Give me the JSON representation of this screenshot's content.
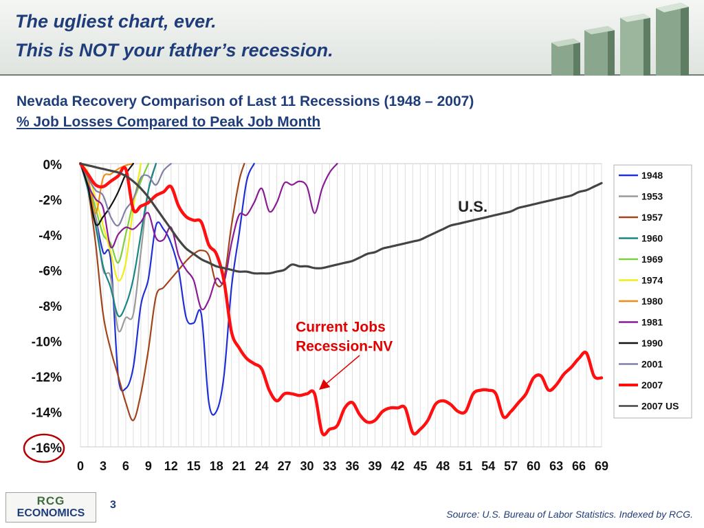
{
  "slide": {
    "title_line1": "The ugliest chart, ever.",
    "title_line2": "This is NOT your father’s recession.",
    "subtitle_line1": "Nevada Recovery Comparison of Last 11 Recessions (1948 – 2007)",
    "subtitle_line2": "% Job Losses Compared to Peak Job Month",
    "page_number": "3",
    "logo_text_top": "RCG",
    "logo_text_bottom": "ECONOMICS",
    "source": "Source: U.S. Bureau of Labor Statistics. Indexed by RCG."
  },
  "chart_data": {
    "type": "line",
    "title": "",
    "xlabel": "",
    "ylabel": "",
    "xlim": [
      0,
      69
    ],
    "ylim": [
      -16,
      0
    ],
    "x_ticks": [
      0,
      3,
      6,
      9,
      12,
      15,
      18,
      21,
      24,
      27,
      30,
      33,
      36,
      39,
      42,
      45,
      48,
      51,
      54,
      57,
      60,
      63,
      66,
      69
    ],
    "x_tick_labels": [
      "0",
      "3",
      "6",
      "9",
      "12",
      "15",
      "18",
      "21",
      "24",
      "27",
      "30",
      "33",
      "36",
      "39",
      "42",
      "45",
      "48",
      "51",
      "54",
      "57",
      "60",
      "63",
      "66",
      "69"
    ],
    "y_ticks": [
      0,
      -2,
      -4,
      -6,
      -8,
      -10,
      -12,
      -14,
      -16
    ],
    "y_tick_labels": [
      "0%",
      "-2%",
      "-4%",
      "-6%",
      "-8%",
      "-10%",
      "-12%",
      "-14%",
      "-16%"
    ],
    "grid": "vertical gridlines at every month",
    "legend_position": "right",
    "annotations": [
      {
        "text": "U.S.",
        "at_x": 50,
        "at_y": -2.4,
        "color": "#222222"
      },
      {
        "text_line1": "Current Jobs",
        "text_line2": "Recession-NV",
        "at_x": 28.5,
        "at_y": -9.5,
        "color": "#e00000",
        "arrow_to_x": 31.8,
        "arrow_to_y": -12.7
      },
      {
        "text": "",
        "circled_tick": "-16%",
        "color": "#b30000"
      }
    ],
    "series": [
      {
        "name": "1948",
        "color": "#1f2fd6",
        "width": 2.2,
        "x": [
          0,
          1,
          2,
          3,
          4,
          5,
          6,
          7,
          8,
          9,
          10,
          11,
          12,
          13,
          14,
          15,
          16,
          17,
          18,
          19,
          20,
          21,
          22,
          23
        ],
        "y": [
          0,
          -1.2,
          -3,
          -5,
          -5.4,
          -12,
          -12.7,
          -11.5,
          -8,
          -6.5,
          -3.5,
          -3.7,
          -4.5,
          -6,
          -8.7,
          -9,
          -8.5,
          -13.5,
          -14,
          -12,
          -7,
          -4,
          -1,
          0
        ]
      },
      {
        "name": "1953",
        "color": "#9a9a9a",
        "width": 2.2,
        "x": [
          0,
          1,
          2,
          3,
          4,
          5,
          6,
          7,
          8,
          9,
          10
        ],
        "y": [
          0,
          -1.2,
          -3,
          -6,
          -6.4,
          -9.4,
          -8.7,
          -8.5,
          -5,
          -1.5,
          0
        ]
      },
      {
        "name": "1957",
        "color": "#a0441a",
        "width": 2.2,
        "x": [
          0,
          1,
          2,
          3,
          4,
          5,
          6,
          7,
          8,
          9,
          10,
          11,
          12,
          13,
          14,
          15,
          16,
          17,
          18,
          19,
          20,
          21,
          21.7
        ],
        "y": [
          0,
          -1.5,
          -4.5,
          -8.5,
          -10.5,
          -12,
          -13.5,
          -14.5,
          -13,
          -10.5,
          -7.5,
          -7,
          -6.5,
          -6,
          -5.5,
          -5.1,
          -4.9,
          -5.2,
          -6.8,
          -6.5,
          -3.5,
          -1,
          0
        ]
      },
      {
        "name": "1960",
        "color": "#1a8585",
        "width": 2.2,
        "x": [
          0,
          1,
          2,
          3,
          4,
          5,
          6,
          7,
          8,
          9,
          10
        ],
        "y": [
          0,
          -1.5,
          -3.5,
          -5.8,
          -7,
          -8.6,
          -8,
          -6.5,
          -4,
          -1.5,
          0
        ]
      },
      {
        "name": "1969",
        "color": "#7ecf3c",
        "width": 2.2,
        "x": [
          0,
          1,
          2,
          3,
          4,
          5,
          6,
          7,
          8,
          9
        ],
        "y": [
          0,
          -1,
          -2.5,
          -4,
          -4.5,
          -5.6,
          -4,
          -2.2,
          -1,
          0
        ]
      },
      {
        "name": "1974",
        "color": "#f0ee10",
        "width": 2.2,
        "x": [
          0,
          1,
          2,
          3,
          4,
          5,
          6,
          7,
          8
        ],
        "y": [
          0,
          -0.5,
          -2,
          -3.5,
          -5,
          -6.6,
          -5.6,
          -2.5,
          0
        ]
      },
      {
        "name": "1980",
        "color": "#f08c1a",
        "width": 2.2,
        "x": [
          0,
          1,
          2,
          3,
          4,
          5,
          6,
          7
        ],
        "y": [
          0,
          -0.8,
          -2.8,
          -0.8,
          -0.6,
          -0.3,
          -0.1,
          0
        ]
      },
      {
        "name": "1981",
        "color": "#8a1a96",
        "width": 2.2,
        "x": [
          0,
          1,
          2,
          3,
          4,
          5,
          6,
          7,
          8,
          9,
          10,
          11,
          12,
          13,
          14,
          15,
          16,
          17,
          18,
          19,
          20,
          21,
          22,
          23,
          24,
          25,
          26,
          27,
          28,
          29,
          30,
          31,
          32,
          33,
          34
        ],
        "y": [
          0,
          -1.2,
          -2,
          -2.5,
          -4.7,
          -4,
          -3.6,
          -3.7,
          -3.3,
          -2.8,
          -4.2,
          -4.3,
          -3.6,
          -5.2,
          -6,
          -6.6,
          -8.2,
          -7.7,
          -6.5,
          -6.7,
          -4.5,
          -2.9,
          -2.9,
          -2.2,
          -1.4,
          -2.7,
          -2.2,
          -1.1,
          -1.2,
          -1.0,
          -1.3,
          -2.8,
          -1.4,
          -0.5,
          0
        ]
      },
      {
        "name": "1990",
        "color": "#111111",
        "width": 2.2,
        "x": [
          0,
          1,
          2,
          3,
          4,
          5,
          6,
          7
        ],
        "y": [
          0,
          -1.3,
          -3.4,
          -3,
          -2.4,
          -1.6,
          -0.6,
          0
        ]
      },
      {
        "name": "2001",
        "color": "#7f7fa8",
        "width": 2.2,
        "x": [
          0,
          1,
          2,
          3,
          4,
          5,
          6,
          7,
          8,
          9,
          10,
          11,
          12
        ],
        "y": [
          0,
          -0.8,
          -1.5,
          -1.8,
          -3,
          -3.5,
          -2.6,
          -2,
          -0.8,
          -0.7,
          -1.2,
          -0.4,
          0
        ]
      },
      {
        "name": "2007",
        "color": "#ff0f0f",
        "width": 4.5,
        "x": [
          0,
          1,
          2,
          3,
          4,
          5,
          6,
          7,
          8,
          9,
          10,
          11,
          12,
          13,
          14,
          15,
          16,
          17,
          18,
          19,
          20,
          21,
          22,
          23,
          24,
          25,
          26,
          27,
          28,
          29,
          30,
          31,
          32,
          33,
          34,
          35,
          36,
          37,
          38,
          39,
          40,
          41,
          42,
          43,
          44,
          45,
          46,
          47,
          48,
          49,
          50,
          51,
          52,
          53,
          54,
          55,
          56,
          57,
          58,
          59,
          60,
          61,
          62,
          63,
          64,
          65,
          66,
          67,
          68,
          69
        ],
        "y": [
          0,
          -0.6,
          -1.2,
          -1.3,
          -1.0,
          -0.7,
          -0.3,
          -2.6,
          -2.4,
          -2.2,
          -1.8,
          -1.6,
          -1.3,
          -2.4,
          -3.0,
          -3.2,
          -3.3,
          -4.6,
          -5.1,
          -6.6,
          -9.5,
          -10.4,
          -11.0,
          -11.3,
          -11.6,
          -12.8,
          -13.4,
          -13.0,
          -13.0,
          -13.1,
          -13.0,
          -13.0,
          -15.2,
          -15.0,
          -14.8,
          -13.8,
          -13.5,
          -14.2,
          -14.6,
          -14.5,
          -14.0,
          -13.8,
          -13.8,
          -13.8,
          -15.2,
          -15.0,
          -14.5,
          -13.6,
          -13.4,
          -13.6,
          -14.0,
          -14.0,
          -13.0,
          -12.8,
          -12.8,
          -13.0,
          -14.3,
          -14.0,
          -13.5,
          -13.0,
          -12.1,
          -12.0,
          -12.8,
          -12.5,
          -11.9,
          -11.5,
          -11.0,
          -10.7,
          -12.0,
          -12.1
        ]
      },
      {
        "name": "2007 US",
        "color": "#444444",
        "width": 3.2,
        "x": [
          0,
          1,
          2,
          3,
          4,
          5,
          6,
          7,
          8,
          9,
          10,
          11,
          12,
          13,
          14,
          15,
          16,
          17,
          18,
          19,
          20,
          21,
          22,
          23,
          24,
          25,
          26,
          27,
          28,
          29,
          30,
          31,
          32,
          33,
          34,
          35,
          36,
          37,
          38,
          39,
          40,
          41,
          42,
          43,
          44,
          45,
          46,
          47,
          48,
          49,
          50,
          51,
          52,
          53,
          54,
          55,
          56,
          57,
          58,
          59,
          60,
          61,
          62,
          63,
          64,
          65,
          66,
          67,
          68,
          69
        ],
        "y": [
          0,
          -0.1,
          -0.2,
          -0.3,
          -0.4,
          -0.5,
          -0.7,
          -1.0,
          -1.4,
          -1.9,
          -2.5,
          -3.1,
          -3.7,
          -4.3,
          -4.8,
          -5.1,
          -5.4,
          -5.6,
          -5.8,
          -5.9,
          -6.0,
          -6.1,
          -6.1,
          -6.2,
          -6.2,
          -6.2,
          -6.1,
          -6.0,
          -5.7,
          -5.8,
          -5.8,
          -5.9,
          -5.9,
          -5.8,
          -5.7,
          -5.6,
          -5.5,
          -5.3,
          -5.1,
          -5.0,
          -4.8,
          -4.7,
          -4.6,
          -4.5,
          -4.4,
          -4.3,
          -4.1,
          -3.9,
          -3.7,
          -3.5,
          -3.4,
          -3.3,
          -3.2,
          -3.1,
          -3.0,
          -2.9,
          -2.8,
          -2.7,
          -2.5,
          -2.4,
          -2.3,
          -2.2,
          -2.1,
          -2.0,
          -1.9,
          -1.8,
          -1.6,
          -1.5,
          -1.3,
          -1.1
        ]
      }
    ]
  }
}
